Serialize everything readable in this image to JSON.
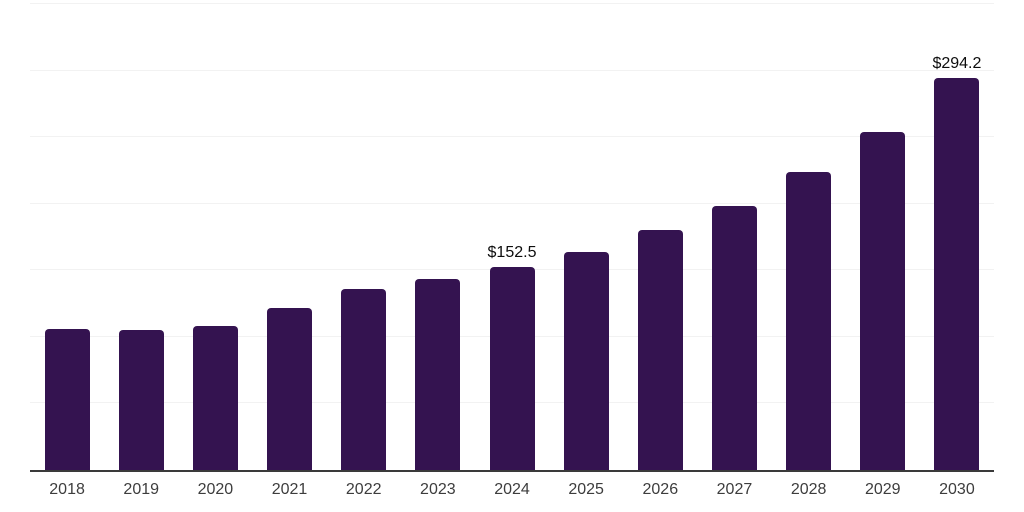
{
  "chart_data": {
    "type": "bar",
    "title": "",
    "xlabel": "",
    "ylabel": "",
    "categories": [
      "2018",
      "2019",
      "2020",
      "2021",
      "2022",
      "2023",
      "2024",
      "2025",
      "2026",
      "2027",
      "2028",
      "2029",
      "2030"
    ],
    "values": [
      106.0,
      105.0,
      108.0,
      121.5,
      136.0,
      143.5,
      152.5,
      164.0,
      180.5,
      198.5,
      223.5,
      254.0,
      294.2
    ],
    "labeled_points": [
      {
        "category": "2024",
        "label": "$152.5"
      },
      {
        "category": "2030",
        "label": "$294.2"
      }
    ],
    "ylim": [
      0,
      350
    ],
    "gridline_step": 50,
    "grid": "horizontal-only",
    "y_tick_labels_visible": false,
    "legend": "none",
    "colors": {
      "bar": "#341350",
      "axis_line": "#3a3a3a",
      "gridline": "#f2f2f2",
      "tick_label": "#3d3d3d",
      "data_label": "#0d0d0d",
      "background": "#ffffff"
    }
  }
}
